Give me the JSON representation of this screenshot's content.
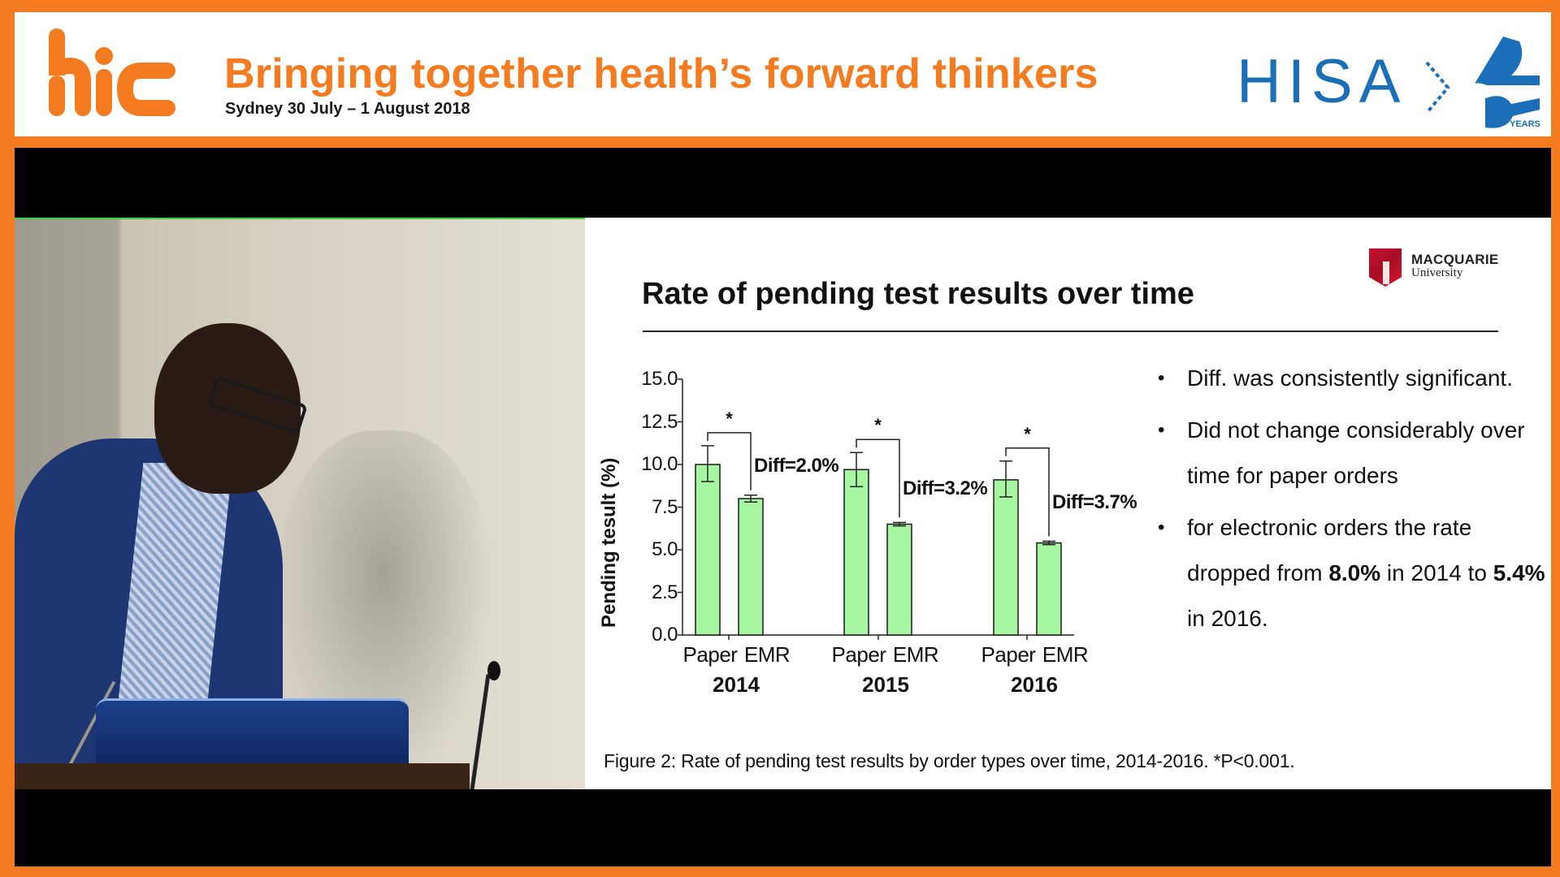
{
  "header": {
    "title": "Bringing together health’s forward thinkers",
    "subtitle": "Sydney 30 July – 1 August 2018",
    "logo_left": "hic",
    "logo_right_text": "HISA",
    "logo_right_badge": "25",
    "logo_right_badge_caption": "YEARS",
    "brand_color": "#f47b20",
    "hisa_color": "#1a6fb8"
  },
  "slide": {
    "title": "Rate of pending test results over time",
    "logo": {
      "name": "MACQUARIE",
      "sub": "University"
    },
    "bullets": [
      {
        "text": "Diff. was consistently significant."
      },
      {
        "text": "Did not change considerably over time for paper orders"
      },
      {
        "pre": "for electronic orders the rate dropped from ",
        "b1": "8.0%",
        "mid": " in 2014 to ",
        "b2": "5.4%",
        "post": " in 2016."
      }
    ],
    "caption": "Figure 2: Rate of pending test results by order types over time, 2014-2016. *P<0.001."
  },
  "chart_data": {
    "type": "bar",
    "title": "Rate of pending test results over time",
    "xlabel": "",
    "ylabel": "Pending tesult (%)",
    "ylim": [
      0,
      15
    ],
    "yticks": [
      "0.0",
      "2.5",
      "5.0",
      "7.5",
      "10.0",
      "12.5",
      "15.0"
    ],
    "grid": false,
    "legend": null,
    "bar_color": "#a6f5a0",
    "groups": [
      "2014",
      "2015",
      "2016"
    ],
    "categories": [
      "Paper",
      "EMR"
    ],
    "series": [
      {
        "name": "Paper",
        "values": [
          10.0,
          9.7,
          9.1
        ],
        "err_low": [
          9.0,
          8.7,
          8.1
        ],
        "err_high": [
          11.1,
          10.7,
          10.2
        ]
      },
      {
        "name": "EMR",
        "values": [
          8.0,
          6.5,
          5.4
        ],
        "err_low": [
          7.8,
          6.4,
          5.3
        ],
        "err_high": [
          8.2,
          6.6,
          5.5
        ]
      }
    ],
    "annotations": [
      {
        "group": "2014",
        "label": "Diff=2.0%",
        "significance": "*"
      },
      {
        "group": "2015",
        "label": "Diff=3.2%",
        "significance": "*"
      },
      {
        "group": "2016",
        "label": "Diff=3.7%",
        "significance": "*"
      }
    ],
    "caption": "Figure 2: Rate of pending test results by order types over time, 2014-2016. *P<0.001."
  }
}
